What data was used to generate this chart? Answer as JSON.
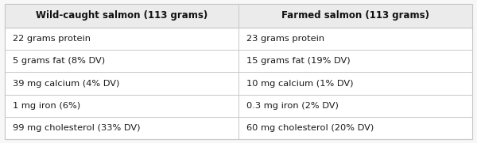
{
  "col1_header": "Wild-caught salmon (113 grams)",
  "col2_header": "Farmed salmon (113 grams)",
  "rows": [
    [
      "22 grams protein",
      "23 grams protein"
    ],
    [
      "5 grams fat (8% DV)",
      "15 grams fat (19% DV)"
    ],
    [
      "39 mg calcium (4% DV)",
      "10 mg calcium (1% DV)"
    ],
    [
      "1 mg iron (6%)",
      "0.3 mg iron (2% DV)"
    ],
    [
      "99 mg cholesterol (33% DV)",
      "60 mg cholesterol (20% DV)"
    ]
  ],
  "header_bg": "#ebebeb",
  "row_bg": "#f7f7f7",
  "border_color": "#c8c8c8",
  "header_font_size": 8.5,
  "cell_font_size": 8.2,
  "text_color": "#1a1a1a",
  "header_text_color": "#111111",
  "fig_bg": "#f7f7f7",
  "col_split": 0.5
}
